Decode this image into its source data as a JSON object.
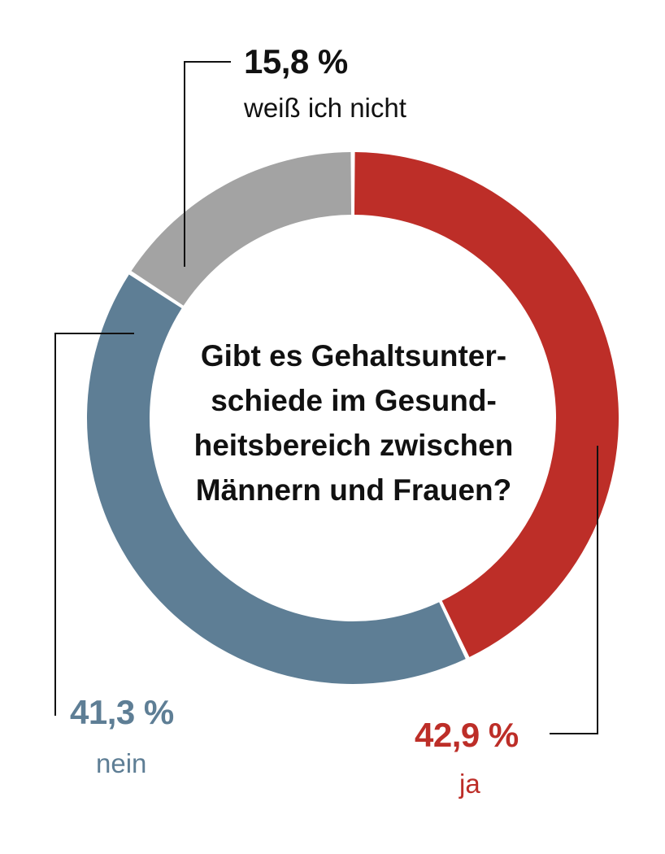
{
  "chart_data": {
    "type": "pie",
    "variant": "donut",
    "title_lines": [
      "Gibt es Gehaltsunter-",
      "schiede im Gesund-",
      "heitsbereich zwischen",
      "Männern und Frauen?"
    ],
    "slices": [
      {
        "label": "ja",
        "value": 42.9,
        "value_label": "42,9 %",
        "color": "#bd2e28"
      },
      {
        "label": "nein",
        "value": 41.3,
        "value_label": "41,3 %",
        "color": "#5e7e95"
      },
      {
        "label": "weiß ich nicht",
        "value": 15.8,
        "value_label": "15,8 %",
        "color": "#a3a3a3"
      }
    ],
    "start_angle": "12 o'clock",
    "direction": "clockwise",
    "label_text_colors": {
      "ja": "#bd2e28",
      "nein": "#5e7e95",
      "weiß ich nicht": "#111111"
    },
    "leader_line_color": "#111111"
  }
}
